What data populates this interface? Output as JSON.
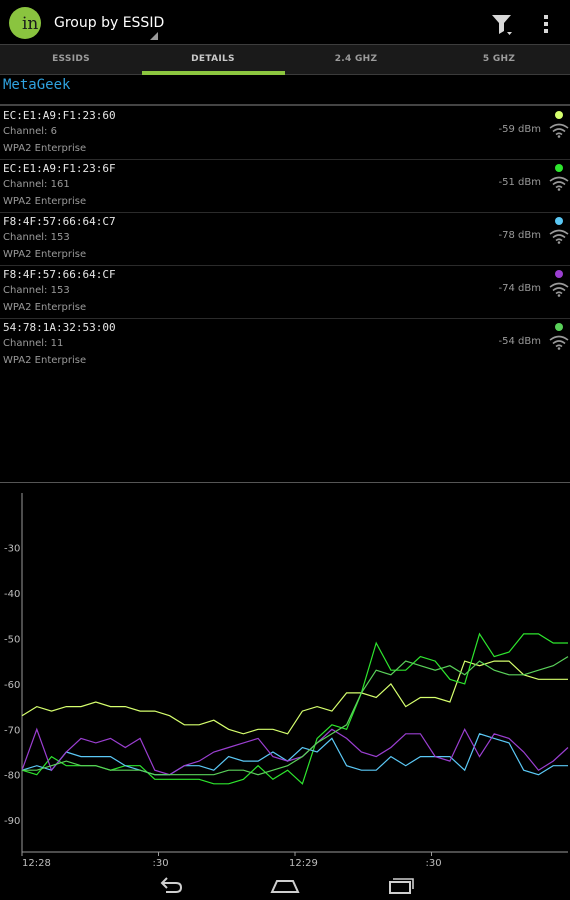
{
  "app": {
    "title": "Group by ESSID",
    "logo_text": "in",
    "accent_color": "#8cc63f"
  },
  "toolbar": {
    "filter_icon": "filter-icon",
    "overflow_icon": "overflow-menu-icon"
  },
  "tabs": [
    {
      "label": "ESSIDS",
      "selected": false
    },
    {
      "label": "DETAILS",
      "selected": true
    },
    {
      "label": "2.4 GHZ",
      "selected": false
    },
    {
      "label": "5 GHZ",
      "selected": false
    }
  ],
  "group": {
    "essid": "MetaGeek",
    "color": "#2fa2df"
  },
  "networks": [
    {
      "mac": "EC:E1:A9:F1:23:60",
      "channel": "Channel: 6",
      "security": "WPA2 Enterprise",
      "signal": "-59 dBm",
      "color": "#d6ff6e"
    },
    {
      "mac": "EC:E1:A9:F1:23:6F",
      "channel": "Channel: 161",
      "security": "WPA2 Enterprise",
      "signal": "-51 dBm",
      "color": "#2ee62e"
    },
    {
      "mac": "F8:4F:57:66:64:C7",
      "channel": "Channel: 153",
      "security": "WPA2 Enterprise",
      "signal": "-78 dBm",
      "color": "#5bc8f5"
    },
    {
      "mac": "F8:4F:57:66:64:CF",
      "channel": "Channel: 153",
      "security": "WPA2 Enterprise",
      "signal": "-74 dBm",
      "color": "#9b3fd1"
    },
    {
      "mac": "54:78:1A:32:53:00",
      "channel": "Channel: 11",
      "security": "WPA2 Enterprise",
      "signal": "-54 dBm",
      "color": "#5ad15a"
    }
  ],
  "chart_data": {
    "type": "line",
    "ylim": [
      -97,
      -18
    ],
    "yticks": [
      "-30",
      "-40",
      "-50",
      "-60",
      "-70",
      "-80",
      "-90"
    ],
    "ytick_values": [
      -30,
      -40,
      -50,
      -60,
      -70,
      -80,
      -90
    ],
    "xlim": [
      0,
      74
    ],
    "xticks": [
      "12:28",
      ":30",
      "12:29",
      ":30"
    ],
    "xtick_values": [
      0,
      18.5,
      37,
      55.5
    ],
    "grid": false,
    "series": [
      {
        "color": "#d6ff6e",
        "x": [
          0,
          2,
          4,
          6,
          8,
          10,
          12,
          14,
          16,
          18,
          20,
          22,
          24,
          26,
          28,
          30,
          32,
          34,
          36,
          38,
          40,
          42,
          44,
          46,
          48,
          50,
          52,
          54,
          56,
          58,
          60,
          62,
          64,
          66,
          68,
          70,
          72,
          74
        ],
        "y": [
          -67,
          -65,
          -66,
          -65,
          -65,
          -64,
          -65,
          -65,
          -66,
          -66,
          -67,
          -69,
          -69,
          -68,
          -70,
          -71,
          -70,
          -70,
          -71,
          -66,
          -65,
          -66,
          -62,
          -62,
          -63,
          -60,
          -65,
          -63,
          -63,
          -64,
          -55,
          -56,
          -55,
          -55,
          -58,
          -59,
          -59,
          -59
        ]
      },
      {
        "color": "#2ee62e",
        "x": [
          0,
          2,
          4,
          6,
          8,
          10,
          12,
          14,
          16,
          18,
          20,
          22,
          24,
          26,
          28,
          30,
          32,
          34,
          36,
          38,
          40,
          42,
          44,
          46,
          48,
          50,
          52,
          54,
          56,
          58,
          60,
          62,
          64,
          66,
          68,
          70,
          72,
          74
        ],
        "y": [
          -79,
          -80,
          -76,
          -78,
          -78,
          -78,
          -79,
          -78,
          -78,
          -81,
          -81,
          -81,
          -81,
          -82,
          -82,
          -81,
          -78,
          -81,
          -79,
          -82,
          -72,
          -69,
          -70,
          -62,
          -51,
          -57,
          -57,
          -54,
          -55,
          -59,
          -60,
          -49,
          -54,
          -53,
          -49,
          -49,
          -51,
          -51
        ]
      },
      {
        "color": "#5bc8f5",
        "x": [
          0,
          2,
          4,
          6,
          8,
          10,
          12,
          14,
          16,
          18,
          20,
          22,
          24,
          26,
          28,
          30,
          32,
          34,
          36,
          38,
          40,
          42,
          44,
          46,
          48,
          50,
          52,
          54,
          56,
          58,
          60,
          62,
          64,
          66,
          68,
          70,
          72,
          74
        ],
        "y": [
          -79,
          -78,
          -79,
          -75,
          -76,
          -76,
          -76,
          -78,
          -79,
          -80,
          -80,
          -78,
          -78,
          -79,
          -76,
          -77,
          -77,
          -75,
          -77,
          -74,
          -75,
          -72,
          -78,
          -79,
          -79,
          -76,
          -78,
          -76,
          -76,
          -76,
          -79,
          -71,
          -72,
          -73,
          -79,
          -80,
          -78,
          -78
        ]
      },
      {
        "color": "#9b3fd1",
        "x": [
          0,
          2,
          4,
          6,
          8,
          10,
          12,
          14,
          16,
          18,
          20,
          22,
          24,
          26,
          28,
          30,
          32,
          34,
          36,
          38,
          40,
          42,
          44,
          46,
          48,
          50,
          52,
          54,
          56,
          58,
          60,
          62,
          64,
          66,
          68,
          70,
          72,
          74
        ],
        "y": [
          -79,
          -70,
          -79,
          -75,
          -72,
          -73,
          -72,
          -74,
          -72,
          -79,
          -80,
          -78,
          -77,
          -75,
          -74,
          -73,
          -72,
          -76,
          -77,
          -76,
          -73,
          -70,
          -72,
          -75,
          -76,
          -74,
          -71,
          -71,
          -76,
          -77,
          -70,
          -76,
          -71,
          -72,
          -75,
          -79,
          -77,
          -74
        ]
      },
      {
        "color": "#5ad15a",
        "x": [
          0,
          2,
          4,
          6,
          8,
          10,
          12,
          14,
          16,
          18,
          20,
          22,
          24,
          26,
          28,
          30,
          32,
          34,
          36,
          38,
          40,
          42,
          44,
          46,
          48,
          50,
          52,
          54,
          56,
          58,
          60,
          62,
          64,
          66,
          68,
          70,
          72,
          74
        ],
        "y": [
          -79,
          -79,
          -78,
          -77,
          -78,
          -78,
          -79,
          -79,
          -79,
          -80,
          -80,
          -80,
          -80,
          -80,
          -79,
          -79,
          -80,
          -79,
          -78,
          -76,
          -73,
          -71,
          -69,
          -62,
          -57,
          -58,
          -55,
          -56,
          -57,
          -56,
          -58,
          -55,
          -57,
          -58,
          -58,
          -57,
          -56,
          -54
        ]
      }
    ]
  },
  "navbar": {
    "back_icon": "back-icon",
    "home_icon": "home-icon",
    "recents_icon": "recents-icon"
  }
}
